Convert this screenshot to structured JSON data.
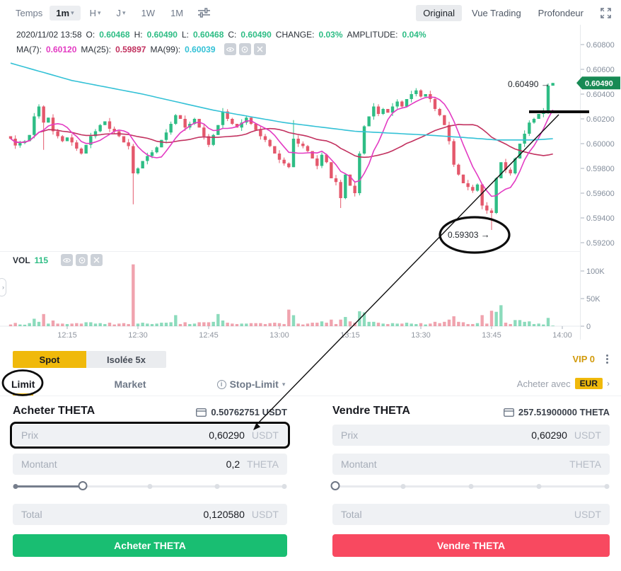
{
  "toolbar": {
    "time_label": "Temps",
    "intervals": [
      {
        "label": "1m",
        "selected": true,
        "chevron": true
      },
      {
        "label": "H",
        "chevron": true
      },
      {
        "label": "J",
        "chevron": true
      },
      {
        "label": "1W"
      },
      {
        "label": "1M"
      }
    ],
    "views": [
      {
        "label": "Original",
        "selected": true
      },
      {
        "label": "Vue Trading"
      },
      {
        "label": "Profondeur"
      }
    ]
  },
  "ohlc": {
    "datetime": "2020/11/02 13:58",
    "items": [
      {
        "label": "O:",
        "value": "0.60468"
      },
      {
        "label": "H:",
        "value": "0.60490"
      },
      {
        "label": "L:",
        "value": "0.60468"
      },
      {
        "label": "C:",
        "value": "0.60490"
      },
      {
        "label": "CHANGE:",
        "value": "0.03%"
      },
      {
        "label": "AMPLITUDE:",
        "value": "0.04%"
      }
    ]
  },
  "ma": {
    "items": [
      {
        "label": "MA(7):",
        "value": "0.60120",
        "color": "#e33bc3"
      },
      {
        "label": "MA(25):",
        "value": "0.59897",
        "color": "#c2315f"
      },
      {
        "label": "MA(99):",
        "value": "0.60039",
        "color": "#33c1d6"
      }
    ]
  },
  "volume_header": {
    "label": "VOL",
    "value": "115"
  },
  "colors": {
    "up": "#2ebd85",
    "down": "#e4586c",
    "ma7": "#e33bc3",
    "ma25": "#c2315f",
    "ma99": "#33c1d6",
    "axis_text": "#848e9c",
    "axis_line": "#e6e9ec",
    "price_tag_bg": "#178a54",
    "accent_yellow": "#f0b90b",
    "buy_green": "#19be72",
    "sell_red": "#f84960"
  },
  "chart_data": {
    "type": "candlestick",
    "interval": "1m",
    "start_time": "12:03",
    "current_price": "0.60490",
    "y_axis_labels": [
      "0.60800",
      "0.60600",
      "0.60400",
      "0.60200",
      "0.60000",
      "0.59800",
      "0.59600",
      "0.59400",
      "0.59200"
    ],
    "y_axis_top_value": 0.608,
    "y_axis_step": 0.002,
    "volume_axis": [
      {
        "label": "100K",
        "v": 100000
      },
      {
        "label": "50K",
        "v": 50000
      },
      {
        "label": "0",
        "v": 0
      }
    ],
    "x_ticks": [
      [
        "12:15",
        12
      ],
      [
        "12:30",
        27
      ],
      [
        "12:45",
        42
      ],
      [
        "13:00",
        57
      ],
      [
        "13:15",
        72
      ],
      [
        "13:30",
        87
      ],
      [
        "13:45",
        102
      ],
      [
        "14:00",
        117
      ]
    ],
    "first_open": 0.6006,
    "closes": [
      0.6004,
      0.59985,
      0.60005,
      0.6002,
      0.6007,
      0.6022,
      0.603,
      0.6017,
      0.6021,
      0.601,
      0.6006,
      0.6002,
      0.6005,
      0.6001,
      0.5996,
      0.5992,
      0.5999,
      0.6006,
      0.601,
      0.6015,
      0.6018,
      0.6012,
      0.601,
      0.6006,
      0.6001,
      0.5998,
      0.5976,
      0.598,
      0.5986,
      0.599,
      0.5993,
      0.5997,
      0.6003,
      0.6009,
      0.6016,
      0.6023,
      0.602,
      0.6013,
      0.6016,
      0.602,
      0.6013,
      0.6006,
      0.5999,
      0.6007,
      0.6015,
      0.6026,
      0.602,
      0.6016,
      0.6013,
      0.6017,
      0.6021,
      0.6016,
      0.6011,
      0.6006,
      0.6003,
      0.5998,
      0.5992,
      0.5987,
      0.5984,
      0.5981,
      0.6004,
      0.6,
      0.5998,
      0.5994,
      0.5988,
      0.5982,
      0.5991,
      0.5985,
      0.5972,
      0.5969,
      0.5956,
      0.5975,
      0.5966,
      0.596,
      0.5992,
      0.6014,
      0.6022,
      0.603,
      0.6024,
      0.6028,
      0.6025,
      0.603,
      0.6034,
      0.603,
      0.6036,
      0.604,
      0.6043,
      0.6038,
      0.604,
      0.6036,
      0.6028,
      0.6023,
      0.6015,
      0.6002,
      0.5983,
      0.5975,
      0.5968,
      0.5965,
      0.5962,
      0.5967,
      0.595,
      0.5946,
      0.5944,
      0.5972,
      0.5985,
      0.5979,
      0.5976,
      0.5988,
      0.6,
      0.6008,
      0.6017,
      0.602,
      0.6024,
      0.6026,
      0.60468,
      0.6049
    ],
    "candle_overrides": {
      "7": {
        "l": 0.5995
      },
      "26": {
        "l": 0.5951
      },
      "60": {
        "h": 0.6019
      },
      "70": {
        "l": 0.5948
      },
      "100": {
        "l": 0.5947
      },
      "102": {
        "l": 0.59303
      },
      "114": {
        "l": 0.6024
      },
      "115": {
        "o": 0.60468,
        "l": 0.60468,
        "h": 0.6049
      }
    },
    "volume_overrides": {
      "7": 22000,
      "26": 112000,
      "35": 20000,
      "44": 22000,
      "59": 30000,
      "75": 25000,
      "94": 18000,
      "100": 20000,
      "102": 28000,
      "103": 26000,
      "104": 38000,
      "114": 15000,
      "115": 115
    },
    "ma99_keyframes": [
      [
        0,
        0.6065
      ],
      [
        13,
        0.6051
      ],
      [
        28,
        0.604
      ],
      [
        43,
        0.6027
      ],
      [
        58,
        0.6017
      ],
      [
        73,
        0.601
      ],
      [
        88,
        0.6007
      ],
      [
        96,
        0.6005
      ],
      [
        103,
        0.6003
      ],
      [
        111,
        0.6003
      ],
      [
        115,
        0.6004
      ]
    ]
  },
  "chart_annotations": {
    "high_label": "0.60490",
    "low_label": "0.59303",
    "arrow": "→",
    "price_tag": "0.60490"
  },
  "left_handle_glyph": "›",
  "panel": {
    "mode_tabs": [
      {
        "label": "Spot",
        "active": true
      },
      {
        "label": "Isolée 5x",
        "active": false
      }
    ],
    "vip": "VIP 0",
    "order_tabs": {
      "limit": "Limit",
      "market": "Market",
      "stop_limit": "Stop-Limit"
    },
    "buy_with": {
      "prefix": "Acheter avec",
      "currency": "EUR",
      "chevron": "›"
    },
    "buy": {
      "title": "Acheter THETA",
      "balance": "0.50762751 USDT",
      "price": {
        "label": "Prix",
        "value": "0,60290",
        "unit": "USDT"
      },
      "amount": {
        "label": "Montant",
        "value": "0,2",
        "unit": "THETA"
      },
      "total": {
        "label": "Total",
        "value": "0,120580",
        "unit": "USDT"
      },
      "slider_pct": 25,
      "button": "Acheter THETA"
    },
    "sell": {
      "title": "Vendre THETA",
      "balance": "257.51900000 THETA",
      "price": {
        "label": "Prix",
        "value": "0,60290",
        "unit": "USDT"
      },
      "amount": {
        "label": "Montant",
        "value": "",
        "unit": "THETA"
      },
      "total": {
        "label": "Total",
        "value": "",
        "unit": "USDT"
      },
      "slider_pct": 0,
      "button": "Vendre THETA"
    }
  }
}
